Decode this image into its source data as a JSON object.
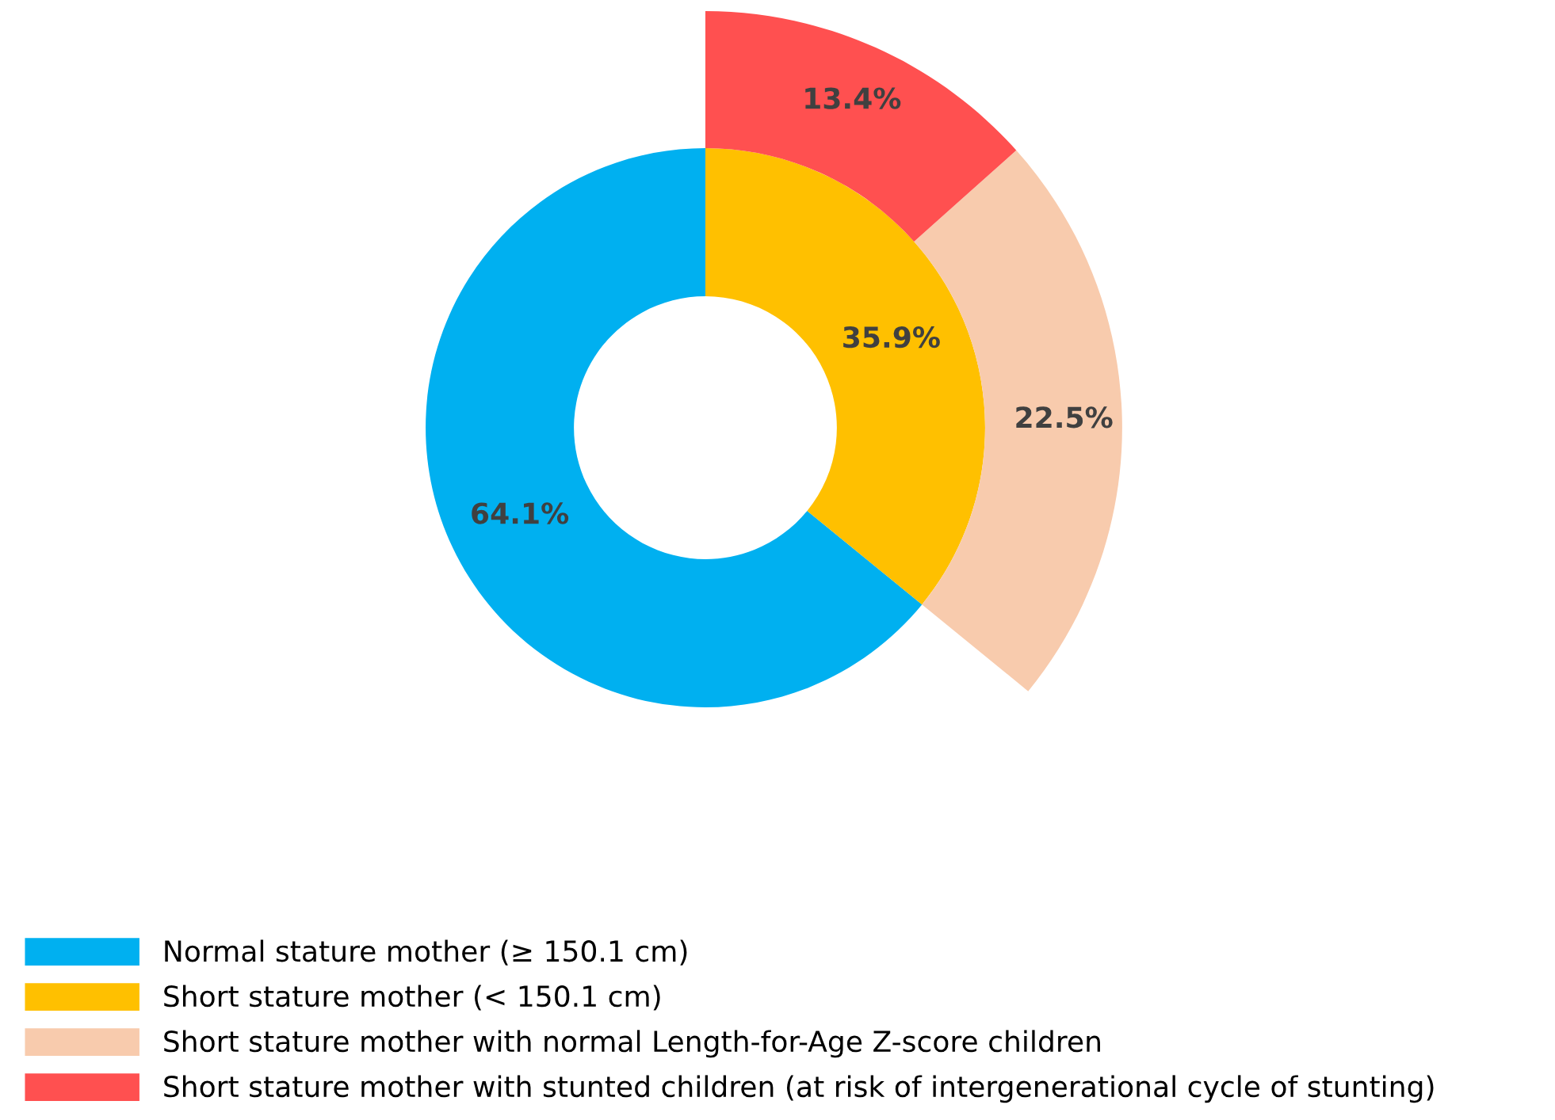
{
  "chart_data": {
    "type": "donut",
    "categories": [
      "Normal stature mother (≥ 150.1 cm)",
      "Short stature mother (< 150.1 cm)",
      "Short stature mother with normal Length-for-Age Z-score children",
      "Short stature mother with stunted children (at risk of intergenerational cycle of stunting)"
    ],
    "colors": [
      "#00b0f0",
      "#ffc000",
      "#f8cbad",
      "#ff5050"
    ],
    "series": [
      {
        "values": [
          64.1,
          35.9,
          null,
          null
        ],
        "value_labels": [
          "64.1%",
          "35.9%",
          null,
          null
        ]
      },
      {
        "values": [
          null,
          null,
          22.5,
          13.4
        ],
        "value_labels": [
          null,
          null,
          "22.5%",
          "13.4%"
        ]
      }
    ],
    "legend": "bottom"
  }
}
